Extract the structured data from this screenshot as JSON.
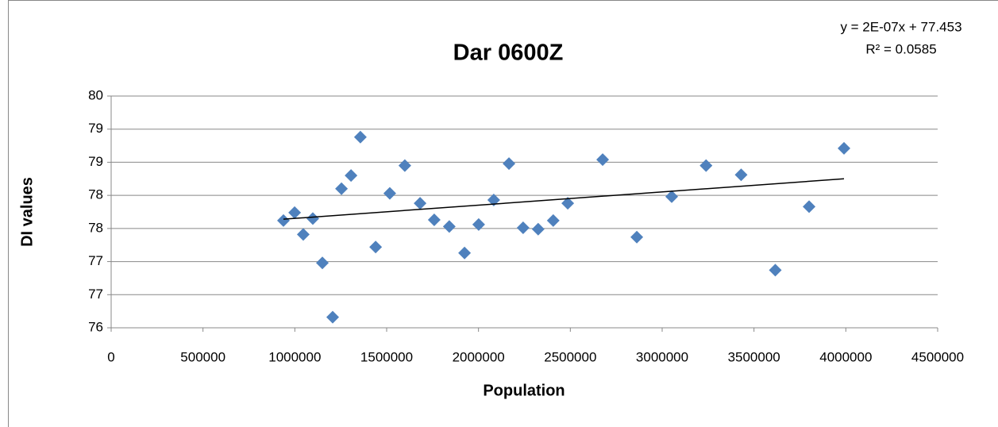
{
  "chart_data": {
    "type": "scatter",
    "title": "Dar  0600Z",
    "xlabel": "Population",
    "ylabel": "DI values",
    "annotations": [
      "y = 2E-07x + 77.453",
      "R² = 0.0585"
    ],
    "series": [
      {
        "name": "DI values",
        "color": "#4f81bd",
        "x": [
          938000,
          999000,
          1046000,
          1098000,
          1150000,
          1206000,
          1254000,
          1306000,
          1357000,
          1440000,
          1517000,
          1599000,
          1682000,
          1759000,
          1841000,
          1924000,
          2001000,
          2083000,
          2166000,
          2243000,
          2325000,
          2407000,
          2486000,
          2676000,
          2862000,
          3052000,
          3239000,
          3430000,
          3616000,
          3800000,
          3990000
        ],
        "values": [
          77.62,
          77.74,
          77.41,
          77.65,
          76.98,
          76.16,
          78.1,
          78.3,
          78.88,
          77.22,
          78.03,
          78.45,
          77.88,
          77.63,
          77.53,
          77.13,
          77.56,
          77.93,
          78.48,
          77.51,
          77.49,
          77.62,
          77.88,
          78.54,
          77.37,
          77.98,
          78.45,
          78.31,
          76.87,
          77.83,
          78.71
        ]
      }
    ],
    "trendline": {
      "color": "#000000",
      "x": [
        938000,
        3990000
      ],
      "values": [
        77.64,
        78.25
      ]
    },
    "xlim": [
      0,
      4500000
    ],
    "xticks": [
      0,
      500000,
      1000000,
      1500000,
      2000000,
      2500000,
      3000000,
      3500000,
      4000000,
      4500000
    ],
    "ylim": [
      76,
      79.5
    ],
    "yticks": [
      76,
      {
        "value": 76.5,
        "label": "77"
      },
      77,
      {
        "value": 77.5,
        "label": "78"
      },
      78,
      {
        "value": 78.5,
        "label": "79"
      },
      79,
      {
        "value": 79.5,
        "label": "80"
      }
    ],
    "grid": true
  }
}
